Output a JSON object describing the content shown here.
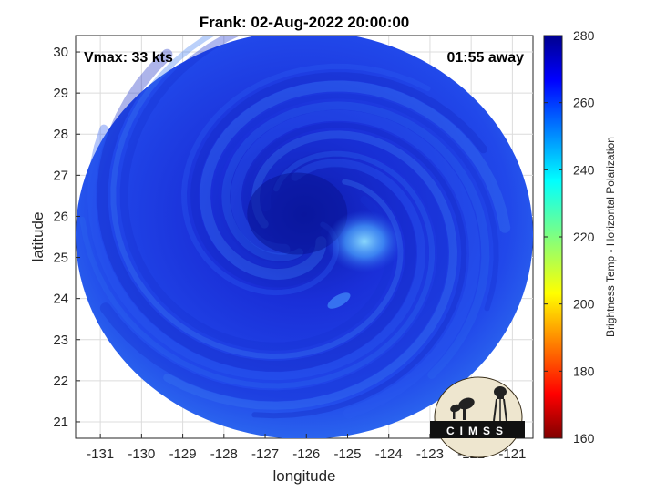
{
  "title": "Frank: 02-Aug-2022 20:00:00",
  "vmax_text": "Vmax: 33 kts",
  "time_text": "01:55 away",
  "logo_text": "CIMSS",
  "map": {
    "xlabel": "longitude",
    "ylabel": "latitude",
    "xlim": [
      -131.6,
      -120.5
    ],
    "ylim": [
      20.6,
      30.4
    ],
    "xticks": [
      -131,
      -130,
      -129,
      -128,
      -127,
      -126,
      -125,
      -124,
      -123,
      -122,
      -121
    ],
    "yticks": [
      21,
      22,
      23,
      24,
      25,
      26,
      27,
      28,
      29,
      30
    ],
    "grid": true,
    "swath_center": [
      -126.0,
      25.5
    ],
    "storm_center": [
      -126.0,
      25.8
    ]
  },
  "colorbar": {
    "label": "Brightness Temp - Horizontal Polarization",
    "min": 160,
    "max": 280,
    "ticks": [
      160,
      180,
      200,
      220,
      240,
      260,
      280
    ],
    "colormap": "jet"
  },
  "colors": {
    "swath_base": "#1f3ae6",
    "swath_dark": "#0b16a8",
    "swath_light": "#2f7cf0",
    "eye_bright": "#66c8ff",
    "grid": "#dcdcdc"
  }
}
